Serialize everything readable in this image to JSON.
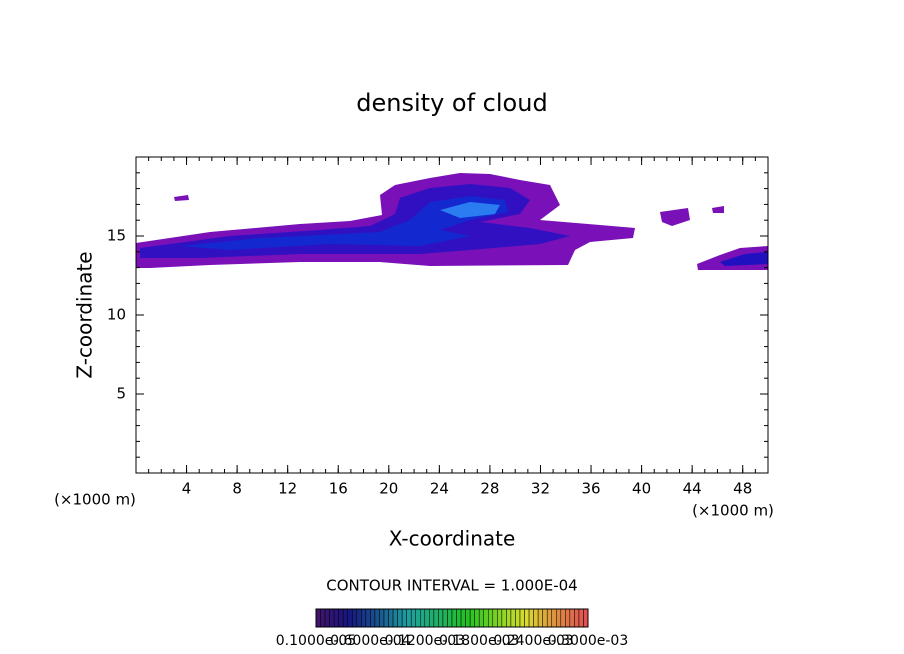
{
  "chart_data": {
    "type": "contour",
    "title": "density of cloud",
    "x_label": "X-coordinate",
    "y_label": "Z-coordinate",
    "y_unit_label": "(×1000 m)",
    "x_unit_label": "(×1000 m)",
    "xlim": [
      0,
      50
    ],
    "ylim": [
      0,
      20
    ],
    "xticks": [
      4,
      8,
      12,
      16,
      20,
      24,
      28,
      32,
      36,
      40,
      44,
      48
    ],
    "yticks": [
      5,
      10,
      15
    ],
    "contour_interval_label": "CONTOUR INTERVAL = 1.000E-04",
    "colorbar_labels": [
      "0.1000e-05",
      "0.6000e-04",
      "0.1200e-03",
      "0.1800e-03",
      "0.2400e-03",
      "0.3000e-03"
    ]
  }
}
